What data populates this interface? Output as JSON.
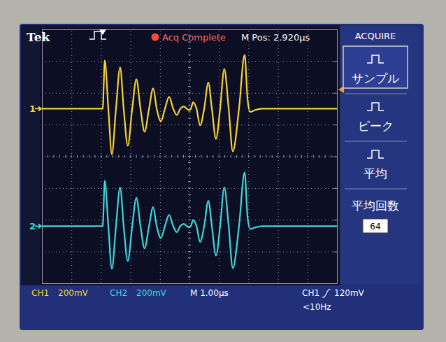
{
  "chart_data": {
    "type": "line",
    "x": [
      0,
      2.06,
      2.13,
      2.25,
      2.37,
      2.51,
      2.65,
      2.77,
      2.91,
      3.06,
      3.2,
      3.34,
      3.48,
      3.63,
      3.77,
      3.89,
      4.03,
      4.17,
      4.31,
      4.45,
      4.57,
      4.69,
      4.81,
      4.91,
      4.98,
      5.05,
      5.12,
      5.24,
      5.36,
      5.5,
      5.64,
      5.76,
      5.9,
      6.04,
      6.18,
      6.33,
      6.47,
      6.68,
      6.87,
      6.97,
      7.06,
      7.23,
      7.46,
      10
    ],
    "series": [
      {
        "name": "CH1",
        "color": "#f7d433",
        "values": [
          0,
          0,
          304,
          0,
          -286,
          0,
          260,
          0,
          -233,
          0,
          185,
          0,
          -145,
          0,
          128,
          0,
          -79,
          0,
          75,
          0,
          -40,
          0,
          15,
          0,
          -8,
          0,
          40,
          0,
          -105,
          0,
          165,
          0,
          -190,
          0,
          250,
          0,
          -270,
          0,
          340,
          60,
          -20,
          -8,
          0,
          0
        ]
      },
      {
        "name": "CH2",
        "color": "#3fd8d8",
        "axis": "y2",
        "values": [
          0,
          0,
          286,
          0,
          -269,
          0,
          245,
          0,
          -220,
          0,
          178,
          0,
          -140,
          0,
          120,
          0,
          -75,
          0,
          70,
          0,
          -38,
          0,
          14,
          0,
          -8,
          0,
          38,
          0,
          -100,
          0,
          160,
          0,
          -185,
          0,
          245,
          0,
          -265,
          0,
          339,
          55,
          -18,
          -8,
          0,
          0
        ]
      }
    ],
    "xlim": [
      0,
      10
    ],
    "xticks": [
      0,
      1,
      2,
      3,
      4,
      5,
      6,
      7,
      8,
      9,
      10
    ],
    "ylim": [
      -1100,
      500
    ],
    "yticks": [
      -1100,
      -900,
      -700,
      -500,
      -300,
      -100,
      100,
      300,
      500
    ],
    "y2lim": [
      -360,
      1240
    ],
    "y2ticks": [
      -360,
      -160,
      40,
      240,
      440,
      640,
      840,
      1040,
      1240
    ],
    "grid": true,
    "tick_labels": false,
    "annotations": [
      "Tek",
      "Acq Complete",
      "M Pos: 2.920µs",
      "ACQUIRE",
      "サンプル",
      "ピーク",
      "平均",
      "平均回数",
      "64",
      "200mV",
      "200mV",
      "M 1.00µs",
      "CH1",
      "120mV",
      "<10Hz",
      "1",
      "2"
    ]
  }
}
